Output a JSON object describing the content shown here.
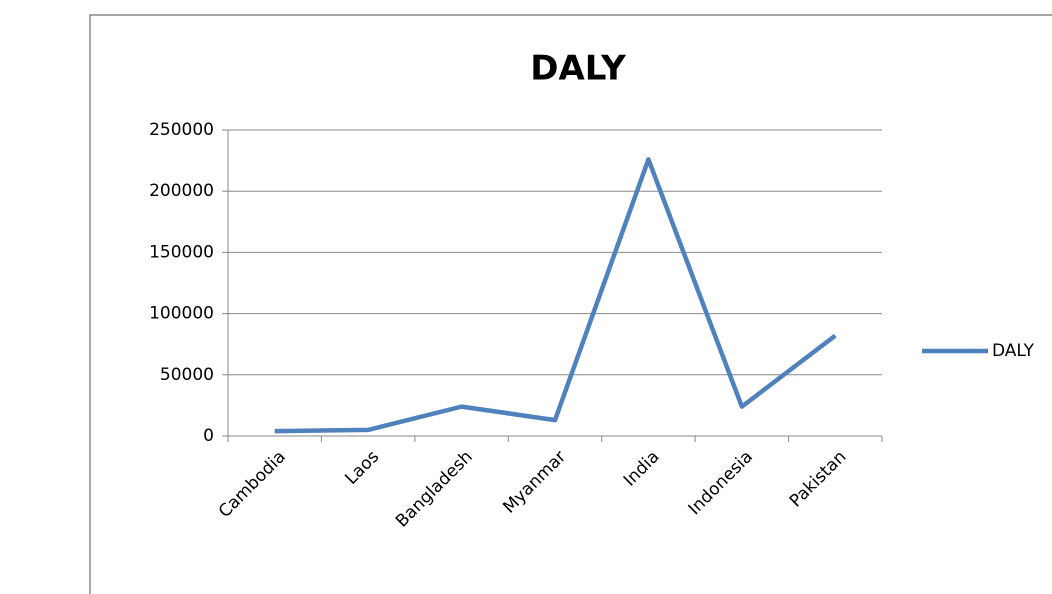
{
  "chart_data": {
    "type": "line",
    "title": "DALY",
    "categories": [
      "Cambodia",
      "Laos",
      "Bangladesh",
      "Myanmar",
      "India",
      "Indonesia",
      "Pakistan"
    ],
    "series": [
      {
        "name": "DALY",
        "color": "#4f81bd",
        "values": [
          4000,
          5000,
          24000,
          13000,
          226000,
          24000,
          82000
        ]
      }
    ],
    "ylim": [
      0,
      250000
    ],
    "yticks": [
      0,
      50000,
      100000,
      150000,
      200000,
      250000
    ],
    "grid": true,
    "legend": "right"
  }
}
